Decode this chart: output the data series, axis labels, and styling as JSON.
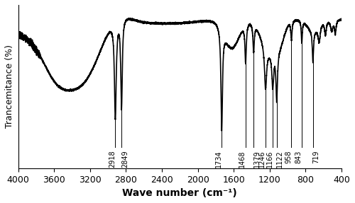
{
  "xlabel": "Wave number (cm⁻¹)",
  "ylabel": "Trancemitance (%)",
  "xlim": [
    4000,
    400
  ],
  "xticks": [
    4000,
    3600,
    3200,
    2800,
    2400,
    2000,
    1600,
    1200,
    800,
    400
  ],
  "peak_labels": [
    {
      "wn": 2918,
      "label": "2918",
      "side": "left"
    },
    {
      "wn": 2849,
      "label": "2849",
      "side": "right"
    },
    {
      "wn": 1734,
      "label": "1734",
      "side": "left"
    },
    {
      "wn": 1468,
      "label": "1468",
      "side": "left"
    },
    {
      "wn": 1379,
      "label": "1379",
      "side": "right"
    },
    {
      "wn": 1246,
      "label": "1246",
      "side": "left"
    },
    {
      "wn": 1166,
      "label": "1166",
      "side": "left"
    },
    {
      "wn": 1122,
      "label": "1122",
      "side": "right"
    },
    {
      "wn": 958,
      "label": "958",
      "side": "left"
    },
    {
      "wn": 843,
      "label": "843",
      "side": "left"
    },
    {
      "wn": 719,
      "label": "719",
      "side": "right"
    }
  ],
  "line_color": "#000000",
  "line_width": 1.2,
  "background_color": "#ffffff",
  "fontsize_xlabel": 10,
  "fontsize_ylabel": 9,
  "fontsize_ticks": 9,
  "fontsize_annotations": 7
}
